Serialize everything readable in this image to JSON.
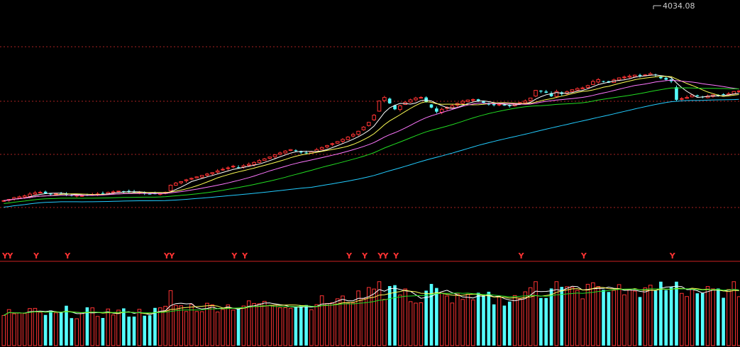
{
  "chart_data": {
    "type": "candlestick",
    "price_panel": {
      "ylim": [
        2300,
        4080
      ],
      "high_label": "4034.08",
      "grid": true,
      "ma_colors": {
        "ma5": "#ffffff",
        "ma10": "#ffff55",
        "ma20": "#ff77ff",
        "ma30": "#22dd22",
        "ma60": "#22ccff"
      }
    },
    "signal_panel": {
      "marker": "Y",
      "marker_color": "#ff3333",
      "bars": [
        0,
        1,
        6,
        12,
        31,
        32,
        44,
        46,
        66,
        69,
        72,
        73,
        75,
        99,
        111,
        128
      ]
    },
    "volume_panel": {
      "ma_colors": [
        "#ffffff",
        "#ffff55",
        "#22dd22"
      ]
    },
    "colors": {
      "up": "#ff3333",
      "down": "#54ffff",
      "background": "#000000",
      "grid": "#aa2222"
    },
    "closes": [
      2400,
      2410,
      2425,
      2432,
      2440,
      2455,
      2465,
      2470,
      2462,
      2458,
      2460,
      2462,
      2450,
      2440,
      2445,
      2442,
      2448,
      2452,
      2456,
      2462,
      2468,
      2474,
      2480,
      2478,
      2472,
      2470,
      2468,
      2462,
      2455,
      2458,
      2462,
      2470,
      2530,
      2548,
      2560,
      2575,
      2588,
      2600,
      2612,
      2624,
      2636,
      2650,
      2664,
      2676,
      2690,
      2680,
      2694,
      2706,
      2722,
      2738,
      2752,
      2768,
      2786,
      2802,
      2818,
      2830,
      2822,
      2806,
      2800,
      2812,
      2830,
      2848,
      2864,
      2880,
      2898,
      2916,
      2936,
      2958,
      2985,
      3020,
      3060,
      3120,
      3240,
      3270,
      3220,
      3170,
      3200,
      3230,
      3250,
      3265,
      3270,
      3230,
      3185,
      3150,
      3170,
      3185,
      3200,
      3220,
      3238,
      3248,
      3252,
      3240,
      3225,
      3210,
      3205,
      3212,
      3206,
      3200,
      3214,
      3226,
      3240,
      3265,
      3330,
      3320,
      3310,
      3280,
      3320,
      3300,
      3318,
      3335,
      3345,
      3350,
      3370,
      3405,
      3420,
      3402,
      3395,
      3418,
      3435,
      3442,
      3450,
      3458,
      3452,
      3460,
      3470,
      3458,
      3432,
      3420,
      3406,
      3250,
      3260,
      3270,
      3290,
      3280,
      3272,
      3282,
      3292,
      3288,
      3296,
      3300,
      3320,
      3325
    ]
  }
}
